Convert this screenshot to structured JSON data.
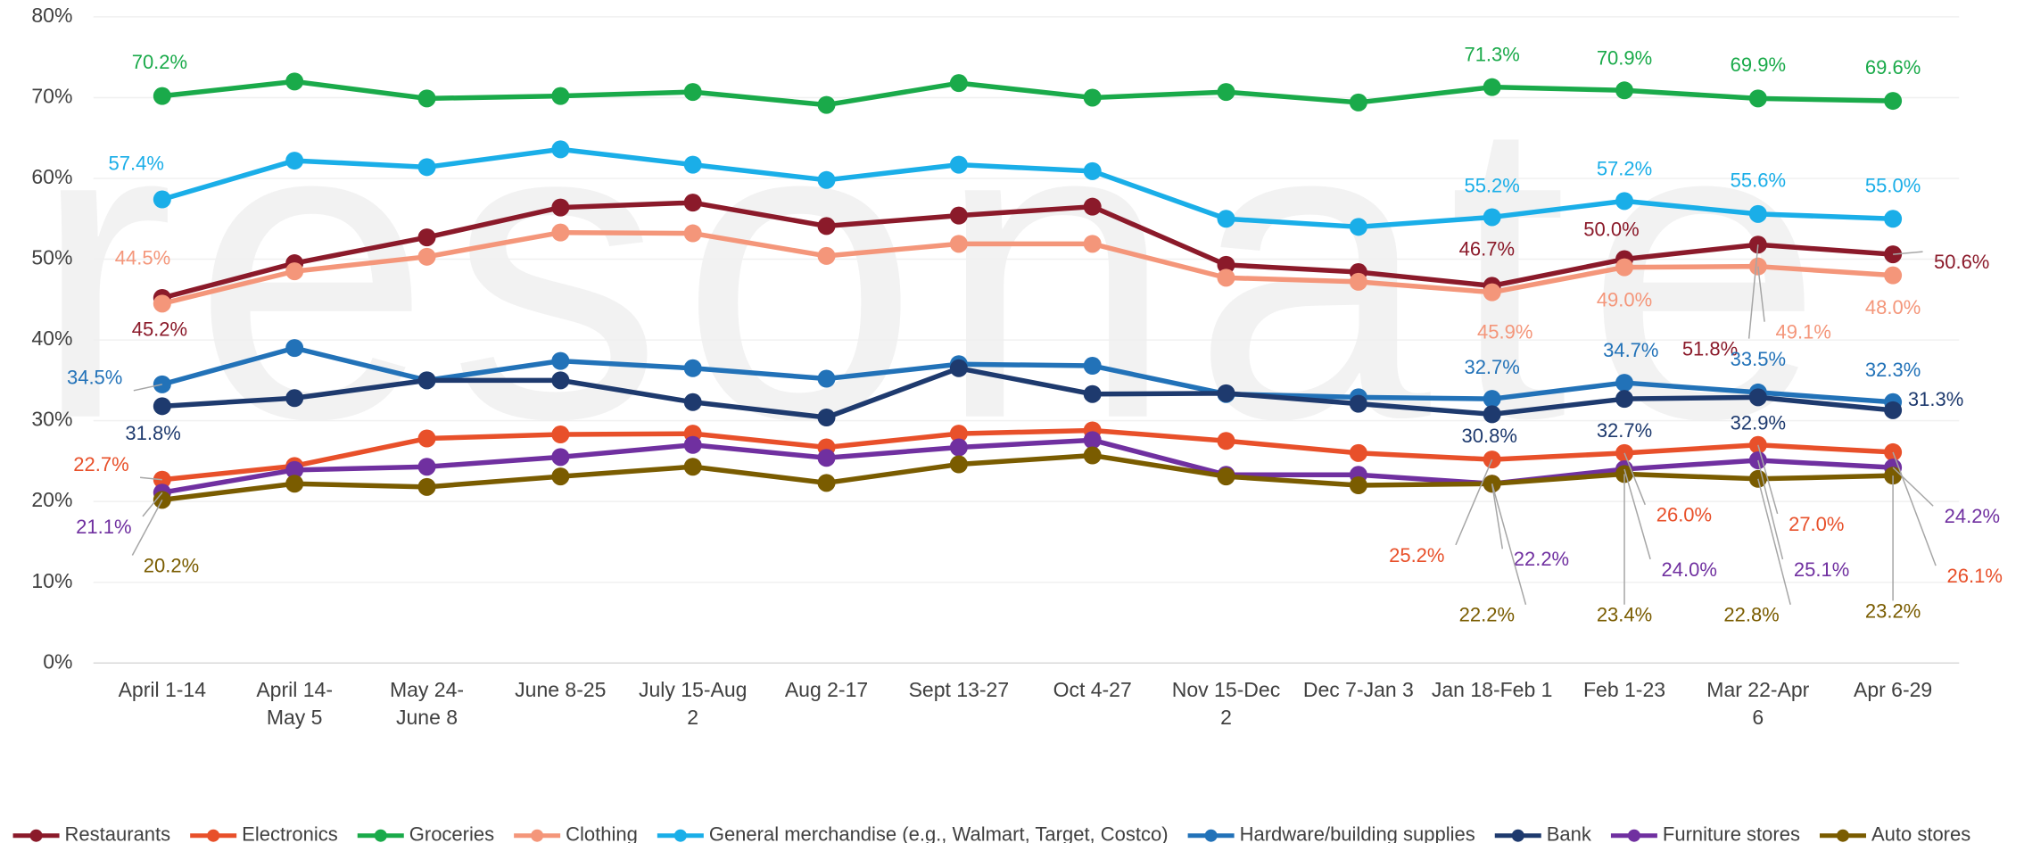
{
  "chart_data": {
    "type": "line",
    "watermark": "resonate",
    "categories": [
      "April 1-14",
      "April 14-\nMay 5",
      "May 24-\nJune 8",
      "June 8-25",
      "July 15-Aug\n2",
      "Aug 2-17",
      "Sept 13-27",
      "Oct 4-27",
      "Nov 15-Dec\n2",
      "Dec 7-Jan 3",
      "Jan 18-Feb 1",
      "Feb 1-23",
      "Mar 22-Apr\n6",
      "Apr 6-29"
    ],
    "ylim": [
      0,
      80
    ],
    "yticks": [
      {
        "value": 0,
        "label": "0%"
      },
      {
        "value": 10,
        "label": "10%"
      },
      {
        "value": 20,
        "label": "20%"
      },
      {
        "value": 30,
        "label": "30%"
      },
      {
        "value": 40,
        "label": "40%"
      },
      {
        "value": 50,
        "label": "50%"
      },
      {
        "value": 60,
        "label": "60%"
      },
      {
        "value": 70,
        "label": "70%"
      },
      {
        "value": 80,
        "label": "80%"
      }
    ],
    "grid": true,
    "legend": "bottom",
    "series": [
      {
        "name": "Restaurants",
        "color": "#8b1a2a",
        "values": [
          45.2,
          49.5,
          52.7,
          56.4,
          57.0,
          54.1,
          55.4,
          56.5,
          49.3,
          48.4,
          46.7,
          50.0,
          51.8,
          50.6
        ],
        "value_labels": [
          "45.2%",
          null,
          null,
          null,
          null,
          null,
          null,
          null,
          null,
          null,
          "46.7%",
          "50.0%",
          "51.8%",
          "50.6%"
        ]
      },
      {
        "name": "Electronics",
        "color": "#e8502a",
        "values": [
          22.7,
          24.4,
          27.8,
          28.3,
          28.4,
          26.7,
          28.4,
          28.8,
          27.5,
          26.0,
          25.2,
          26.0,
          27.0,
          26.1
        ],
        "value_labels": [
          "22.7%",
          null,
          null,
          null,
          null,
          null,
          null,
          null,
          null,
          null,
          "25.2%",
          "26.0%",
          "27.0%",
          "26.1%"
        ]
      },
      {
        "name": "Groceries",
        "color": "#1aaa4a",
        "values": [
          70.2,
          72.0,
          69.9,
          70.2,
          70.7,
          69.1,
          71.8,
          70.0,
          70.7,
          69.4,
          71.3,
          70.9,
          69.9,
          69.6
        ],
        "value_labels": [
          "70.2%",
          null,
          null,
          null,
          null,
          null,
          null,
          null,
          null,
          null,
          "71.3%",
          "70.9%",
          "69.9%",
          "69.6%"
        ]
      },
      {
        "name": "Clothing",
        "color": "#f4967a",
        "values": [
          44.5,
          48.5,
          50.3,
          53.3,
          53.2,
          50.4,
          51.9,
          51.9,
          47.7,
          47.2,
          45.9,
          49.0,
          49.1,
          48.0
        ],
        "value_labels": [
          "44.5%",
          null,
          null,
          null,
          null,
          null,
          null,
          null,
          null,
          null,
          "45.9%",
          "49.0%",
          "49.1%",
          "48.0%"
        ]
      },
      {
        "name": "General merchandise (e.g., Walmart, Target, Costco)",
        "color": "#1aaee8",
        "values": [
          57.4,
          62.2,
          61.4,
          63.6,
          61.7,
          59.8,
          61.7,
          60.9,
          55.0,
          54.0,
          55.2,
          57.2,
          55.6,
          55.0
        ],
        "value_labels": [
          "57.4%",
          null,
          null,
          null,
          null,
          null,
          null,
          null,
          null,
          null,
          "55.2%",
          "57.2%",
          "55.6%",
          "55.0%"
        ]
      },
      {
        "name": "Hardware/building supplies",
        "color": "#2272b8",
        "values": [
          34.5,
          39.0,
          35.0,
          37.4,
          36.5,
          35.2,
          37.0,
          36.8,
          33.3,
          32.9,
          32.7,
          34.7,
          33.5,
          32.3
        ],
        "value_labels": [
          "34.5%",
          null,
          null,
          null,
          null,
          null,
          null,
          null,
          null,
          null,
          "32.7%",
          "34.7%",
          "33.5%",
          "32.3%"
        ]
      },
      {
        "name": "Bank",
        "color": "#1e3a6e",
        "values": [
          31.8,
          32.8,
          35.0,
          35.0,
          32.3,
          30.4,
          36.5,
          33.3,
          33.4,
          32.1,
          30.8,
          32.7,
          32.9,
          31.3
        ],
        "value_labels": [
          "31.8%",
          null,
          null,
          null,
          null,
          null,
          null,
          null,
          null,
          null,
          "30.8%",
          "32.7%",
          "32.9%",
          "31.3%"
        ]
      },
      {
        "name": "Furniture stores",
        "color": "#7030a0",
        "values": [
          21.1,
          23.9,
          24.3,
          25.5,
          27.0,
          25.4,
          26.7,
          27.6,
          23.3,
          23.3,
          22.2,
          24.0,
          25.1,
          24.2
        ],
        "value_labels": [
          "21.1%",
          null,
          null,
          null,
          null,
          null,
          null,
          null,
          null,
          null,
          "22.2%",
          "24.0%",
          "25.1%",
          "24.2%"
        ]
      },
      {
        "name": "Auto stores",
        "color": "#7a5c00",
        "values": [
          20.2,
          22.2,
          21.8,
          23.1,
          24.3,
          22.3,
          24.6,
          25.7,
          23.1,
          22.0,
          22.2,
          23.4,
          22.8,
          23.2
        ],
        "value_labels": [
          "20.2%",
          null,
          null,
          null,
          null,
          null,
          null,
          null,
          null,
          null,
          "22.2%",
          "23.4%",
          "22.8%",
          "23.2%"
        ]
      }
    ]
  }
}
